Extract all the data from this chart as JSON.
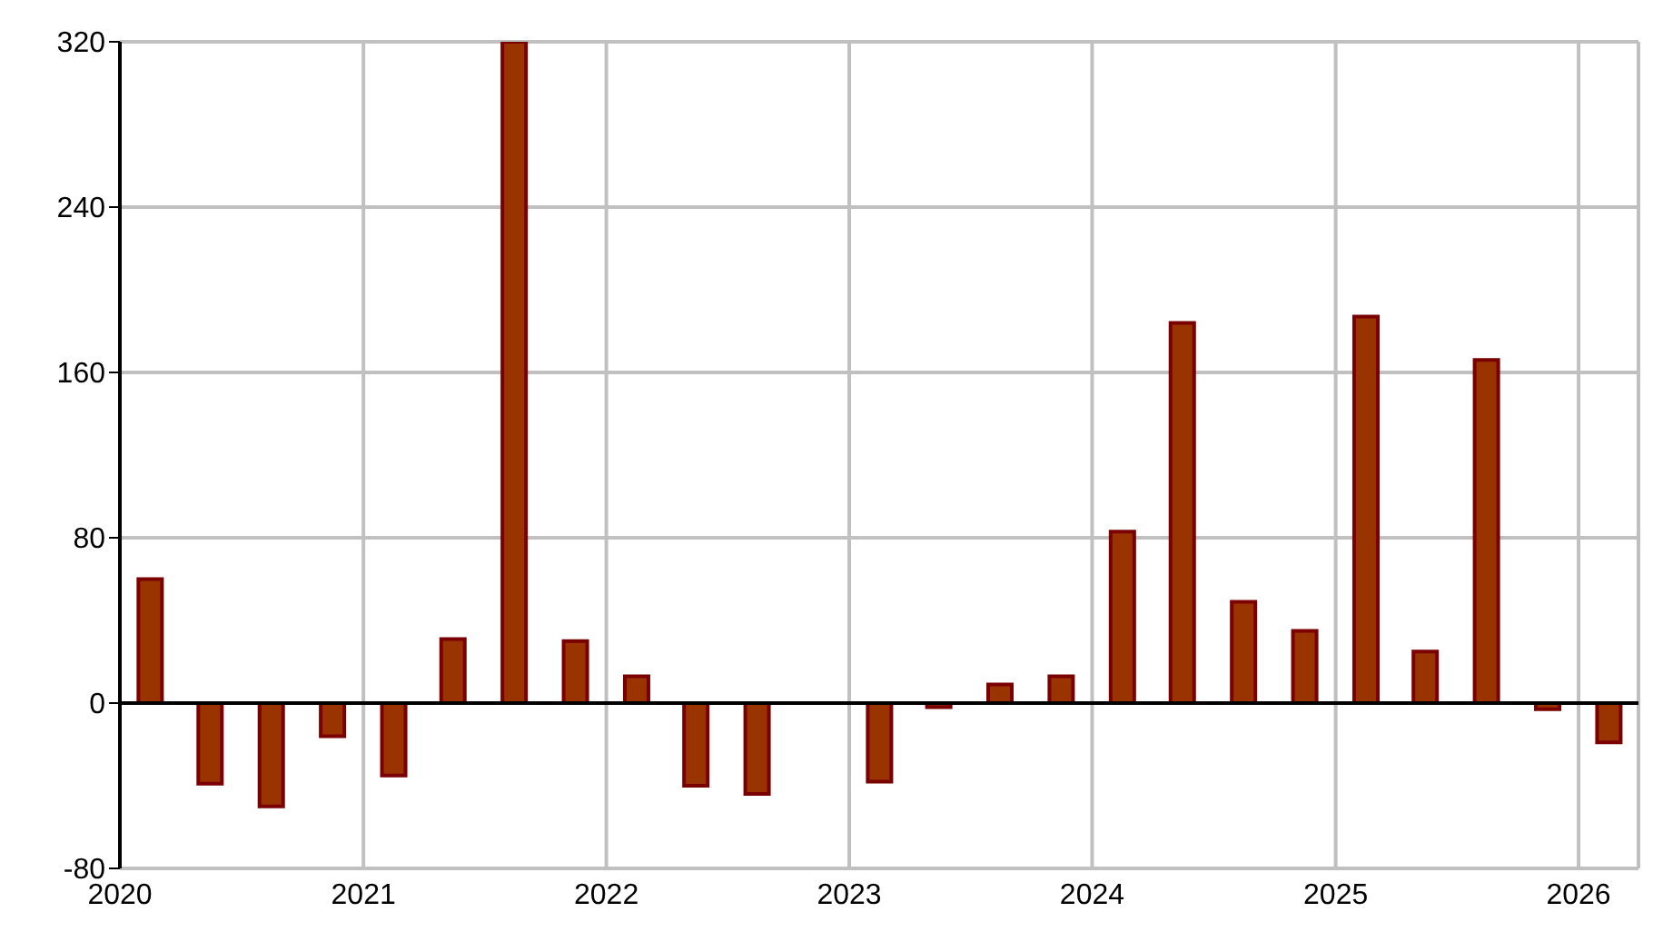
{
  "chart_data": {
    "type": "bar",
    "x": [
      "2020-02-15",
      "2020-05-15",
      "2020-08-15",
      "2020-11-15",
      "2021-02-15",
      "2021-05-15",
      "2021-08-15",
      "2021-11-15",
      "2022-02-15",
      "2022-05-15",
      "2022-08-15",
      "2022-11-15",
      "2023-02-15",
      "2023-05-15",
      "2023-08-15",
      "2023-11-15",
      "2024-02-15",
      "2024-05-15",
      "2024-08-15",
      "2024-11-15",
      "2025-02-15",
      "2025-05-15",
      "2025-08-15",
      "2025-11-15",
      "2026-02-15"
    ],
    "values": [
      60,
      -39,
      -50,
      -16,
      -35,
      31,
      320,
      30,
      13,
      -40,
      -44,
      0,
      -38,
      -2,
      9,
      13,
      83,
      184,
      49,
      35,
      187,
      25,
      166,
      -3,
      -19
    ],
    "color": "#993300",
    "xlim": [
      "2020-01-01",
      "2026-04-01"
    ],
    "xticks": [
      "2020",
      "2021",
      "2022",
      "2023",
      "2024",
      "2025",
      "2026"
    ],
    "ylim": [
      -80,
      320
    ],
    "yticks": [
      -80,
      0,
      80,
      160,
      240,
      320
    ],
    "grid": true
  }
}
